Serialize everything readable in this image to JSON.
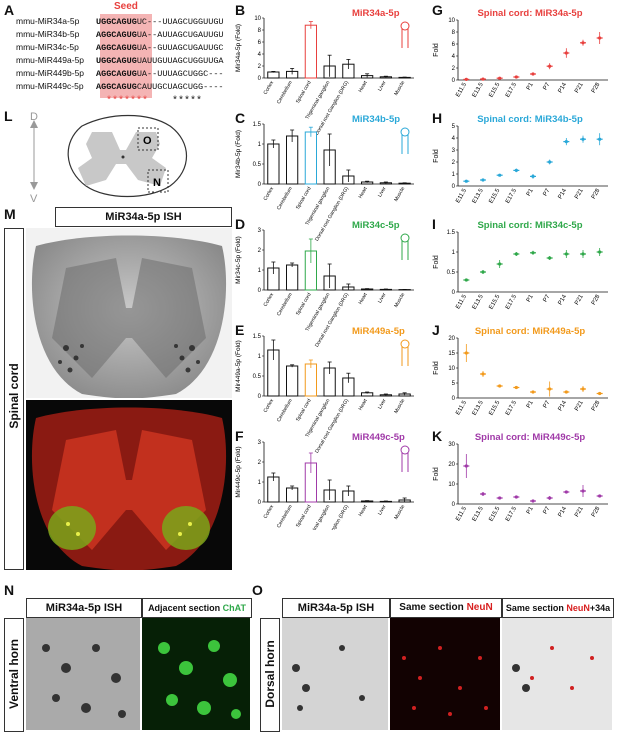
{
  "panels": {
    "A": "A",
    "B": "B",
    "C": "C",
    "D": "D",
    "E": "E",
    "F": "F",
    "G": "G",
    "H": "H",
    "I": "I",
    "J": "J",
    "K": "K",
    "L": "L",
    "M": "M",
    "N": "N",
    "O": "O"
  },
  "seed_label": "Seed",
  "sequences": [
    {
      "name": "mmu-MiR34a-5p",
      "seed": "UGGCAGUG",
      "rest": "UC---UUAGCUGGUUGU"
    },
    {
      "name": "mmu-MiR34b-5p",
      "seed": "AGGCAGUG",
      "rest": "UA--AUUAGCUGAUUGU"
    },
    {
      "name": "mmu-MiR34c-5p",
      "seed": "AGGCAGUG",
      "rest": "UA--GUUAGCUGAUUGC"
    },
    {
      "name": "mmu-MiR449a-5p",
      "seed": "UGGCAGUG",
      "rest": "UAUUGUUAGCUGGUUGA"
    },
    {
      "name": "mmu-MiR449b-5p",
      "seed": "AGGCAGUG",
      "rest": "UA--UUUAGCUGGC---"
    },
    {
      "name": "mmu-MiR449c-5p",
      "seed": "AGGCAGUG",
      "rest": "CAUUGCUAGCUGG----"
    }
  ],
  "seed_stars": "*******",
  "tail_stars": "*****",
  "tissues": [
    "Cortex",
    "Cerebellum",
    "Spinal cord",
    "Trigeminal ganglion",
    "Dorsal root Ganglion (DRG)",
    "Heart",
    "Liver",
    "Muscle"
  ],
  "stages": [
    "E11.5",
    "E13.5",
    "E15.5",
    "E17.5",
    "P1",
    "P7",
    "P14",
    "P21",
    "P28"
  ],
  "colors": {
    "mir34a": "#e8403e",
    "mir34b": "#2aa8d8",
    "mir34c": "#2fa84a",
    "mir449a": "#f29a1c",
    "mir449c": "#a03aa8"
  },
  "chart_data": [
    {
      "type": "bar",
      "id": "B",
      "title": "MiR34a-5p",
      "ylabel": "Mir34a-5p (Fold)",
      "ylim": [
        0,
        10
      ],
      "yticks": [
        0,
        2,
        4,
        6,
        8,
        10
      ],
      "categories": [
        "Cortex",
        "Cerebellum",
        "Spinal cord",
        "Trigeminal ganglion",
        "Dorsal root Ganglion (DRG)",
        "Heart",
        "Liver",
        "Muscle"
      ],
      "values": [
        1.0,
        1.1,
        8.8,
        2.0,
        2.3,
        0.4,
        0.2,
        0.1
      ],
      "errors": [
        0.1,
        0.5,
        0.6,
        1.8,
        0.8,
        0.3,
        0.1,
        0.05
      ],
      "highlight": 2
    },
    {
      "type": "bar",
      "id": "C",
      "title": "MiR34b-5p",
      "ylabel": "Mir34b-5p (Fold)",
      "ylim": [
        0,
        1.5
      ],
      "yticks": [
        0.0,
        0.5,
        1.0,
        1.5
      ],
      "categories": [
        "Cortex",
        "Cerebellum",
        "Spinal cord",
        "Trigeminal ganglion",
        "Dorsal root Ganglion (DRG)",
        "Heart",
        "Liver",
        "Muscle"
      ],
      "values": [
        1.0,
        1.2,
        1.3,
        0.85,
        0.2,
        0.05,
        0.03,
        0.02
      ],
      "errors": [
        0.1,
        0.15,
        0.12,
        0.4,
        0.15,
        0.02,
        0.02,
        0.01
      ],
      "highlight": 2
    },
    {
      "type": "bar",
      "id": "D",
      "title": "MiR34c-5p",
      "ylabel": "Mir34c-5p (Fold)",
      "ylim": [
        0,
        3
      ],
      "yticks": [
        0,
        1,
        2,
        3
      ],
      "categories": [
        "Cortex",
        "Cerebellum",
        "Spinal cord",
        "Trigeminal ganglion",
        "Dorsal root Ganglion (DRG)",
        "Heart",
        "Liver",
        "Muscle"
      ],
      "values": [
        1.1,
        1.25,
        1.95,
        0.7,
        0.15,
        0.05,
        0.03,
        0.02
      ],
      "errors": [
        0.3,
        0.1,
        0.6,
        0.6,
        0.15,
        0.02,
        0.02,
        0.01
      ],
      "highlight": 2
    },
    {
      "type": "bar",
      "id": "E",
      "title": "MiR449a-5p",
      "ylabel": "Mir449a-5p (Fold)",
      "ylim": [
        0,
        1.5
      ],
      "yticks": [
        0.0,
        0.5,
        1.0,
        1.5
      ],
      "categories": [
        "Cortex",
        "Cerebellum",
        "Spinal cord",
        "Trigeminal ganglion",
        "Dorsal root Ganglion (DRG)",
        "Heart",
        "Liver",
        "Muscle"
      ],
      "values": [
        1.15,
        0.75,
        0.8,
        0.7,
        0.45,
        0.08,
        0.03,
        0.05
      ],
      "errors": [
        0.25,
        0.03,
        0.1,
        0.15,
        0.12,
        0.02,
        0.02,
        0.03
      ],
      "highlight": 2
    },
    {
      "type": "bar",
      "id": "F",
      "title": "MiR449c-5p",
      "ylabel": "Mir449c-5p (Fold)",
      "ylim": [
        0,
        3
      ],
      "yticks": [
        0,
        1,
        2,
        3
      ],
      "categories": [
        "Cortex",
        "Cerebellum",
        "Spinal cord",
        "Trigeminal ganglion",
        "Dorsal root Ganglion (DRG)",
        "Heart",
        "Liver",
        "Muscle"
      ],
      "values": [
        1.25,
        0.7,
        1.95,
        0.6,
        0.55,
        0.05,
        0.03,
        0.1
      ],
      "errors": [
        0.2,
        0.1,
        0.5,
        0.5,
        0.25,
        0.02,
        0.02,
        0.1
      ],
      "highlight": 2
    },
    {
      "type": "scatter",
      "id": "G",
      "title": "Spinal cord: MiR34a-5p",
      "ylabel": "Fold",
      "ylim": [
        0,
        10
      ],
      "yticks": [
        0,
        2,
        4,
        6,
        8,
        10
      ],
      "x": [
        "E11.5",
        "E13.5",
        "E15.5",
        "E17.5",
        "P1",
        "P7",
        "P14",
        "P21",
        "P28"
      ],
      "values": [
        0.1,
        0.15,
        0.3,
        0.5,
        1.0,
        2.3,
        4.5,
        6.2,
        7.0
      ],
      "errors": [
        0.05,
        0.05,
        0.1,
        0.1,
        0.2,
        0.5,
        0.8,
        0.5,
        1.0
      ]
    },
    {
      "type": "scatter",
      "id": "H",
      "title": "Spinal cord: MiR34b-5p",
      "ylabel": "Fold",
      "ylim": [
        0,
        5
      ],
      "yticks": [
        0,
        1,
        2,
        3,
        4,
        5
      ],
      "x": [
        "E11.5",
        "E13.5",
        "E15.5",
        "E17.5",
        "P1",
        "P7",
        "P14",
        "P21",
        "P28"
      ],
      "values": [
        0.4,
        0.5,
        0.9,
        1.3,
        0.8,
        2.0,
        3.7,
        3.9,
        3.9
      ],
      "errors": [
        0.05,
        0.1,
        0.1,
        0.15,
        0.2,
        0.2,
        0.3,
        0.3,
        0.5
      ]
    },
    {
      "type": "scatter",
      "id": "I",
      "title": "Spinal cord: MiR34c-5p",
      "ylabel": "Fold",
      "ylim": [
        0,
        1.5
      ],
      "yticks": [
        0.0,
        0.5,
        1.0,
        1.5
      ],
      "x": [
        "E11.5",
        "E13.5",
        "E15.5",
        "E17.5",
        "P1",
        "P7",
        "P14",
        "P21",
        "P28"
      ],
      "values": [
        0.3,
        0.5,
        0.7,
        0.95,
        0.98,
        0.85,
        0.95,
        0.95,
        1.0
      ],
      "errors": [
        0.02,
        0.05,
        0.1,
        0.05,
        0.05,
        0.05,
        0.1,
        0.1,
        0.1
      ]
    },
    {
      "type": "scatter",
      "id": "J",
      "title": "Spinal cord: MiR449a-5p",
      "ylabel": "Fold",
      "ylim": [
        0,
        20
      ],
      "yticks": [
        0,
        5,
        10,
        15,
        20
      ],
      "x": [
        "E11.5",
        "E13.5",
        "E15.5",
        "E17.5",
        "P1",
        "P7",
        "P14",
        "P21",
        "P28"
      ],
      "values": [
        15.0,
        8.0,
        4.0,
        3.5,
        2.0,
        3.0,
        2.0,
        3.0,
        1.5
      ],
      "errors": [
        3.0,
        1.0,
        0.5,
        0.5,
        0.5,
        2.5,
        0.5,
        1.0,
        0.3
      ]
    },
    {
      "type": "scatter",
      "id": "K",
      "title": "Spinal cord: MiR449c-5p",
      "ylabel": "Fold",
      "ylim": [
        0,
        30
      ],
      "yticks": [
        0,
        10,
        20,
        30
      ],
      "x": [
        "E11.5",
        "E13.5",
        "E15.5",
        "E17.5",
        "P1",
        "P7",
        "P14",
        "P21",
        "P28"
      ],
      "values": [
        19.0,
        5.0,
        3.0,
        3.5,
        1.5,
        3.0,
        6.0,
        6.5,
        4.0
      ],
      "errors": [
        6.0,
        1.0,
        0.5,
        0.5,
        0.5,
        1.0,
        0.5,
        3.0,
        0.5
      ]
    }
  ],
  "L": {
    "dorsal": "D",
    "ventral": "V",
    "box_o": "O",
    "box_n": "N"
  },
  "M": {
    "header": "MiR34a-5p ISH",
    "side": "Spinal cord"
  },
  "N": {
    "header_left": "MiR34a-5p ISH",
    "header_right_prefix": "Adjacent section",
    "header_right_marker": "ChAT",
    "side": "Ventral horn"
  },
  "O": {
    "header_1": "MiR34a-5p ISH",
    "header_2_prefix": "Same section",
    "header_2_marker": "NeuN",
    "header_3_prefix": "Same section",
    "header_3_marker": "NeuN",
    "header_3_suffix": "+34a",
    "side": "Dorsal horn"
  }
}
